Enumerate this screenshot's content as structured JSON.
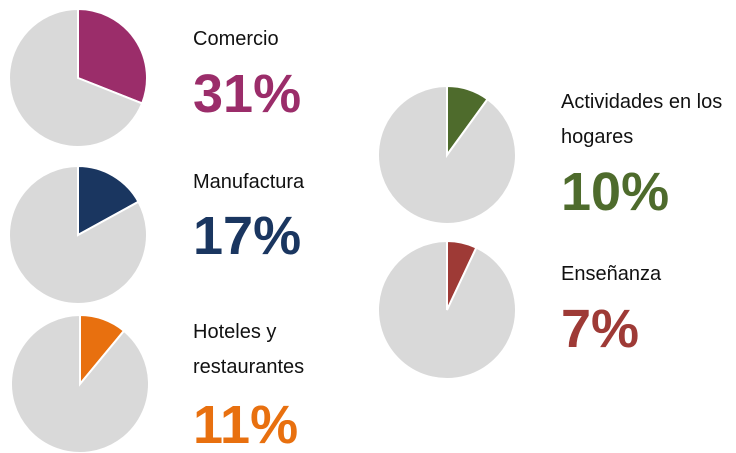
{
  "chart_data": [
    {
      "type": "pie",
      "categories": [
        "Comercio",
        null
      ],
      "values": [
        31,
        69
      ],
      "value_labels": [
        "31%",
        null
      ],
      "colors": [
        "#9b2d6a",
        "#d9d9d9"
      ]
    },
    {
      "type": "pie",
      "categories": [
        "Manufactura",
        null
      ],
      "values": [
        17,
        83
      ],
      "value_labels": [
        "17%",
        null
      ],
      "colors": [
        "#1a3660",
        "#d9d9d9"
      ]
    },
    {
      "type": "pie",
      "categories": [
        "Hoteles y restaurantes",
        null
      ],
      "values": [
        11,
        89
      ],
      "value_labels": [
        "11%",
        null
      ],
      "colors": [
        "#e8700f",
        "#d9d9d9"
      ]
    },
    {
      "type": "pie",
      "categories": [
        "Actividades en los hogares",
        null
      ],
      "values": [
        10,
        90
      ],
      "value_labels": [
        "10%",
        null
      ],
      "colors": [
        "#4e6b2c",
        "#d9d9d9"
      ]
    },
    {
      "type": "pie",
      "categories": [
        "Enseñanza",
        null
      ],
      "values": [
        7,
        93
      ],
      "value_labels": [
        "7%",
        null
      ],
      "colors": [
        "#9e3a36",
        "#d9d9d9"
      ]
    }
  ]
}
